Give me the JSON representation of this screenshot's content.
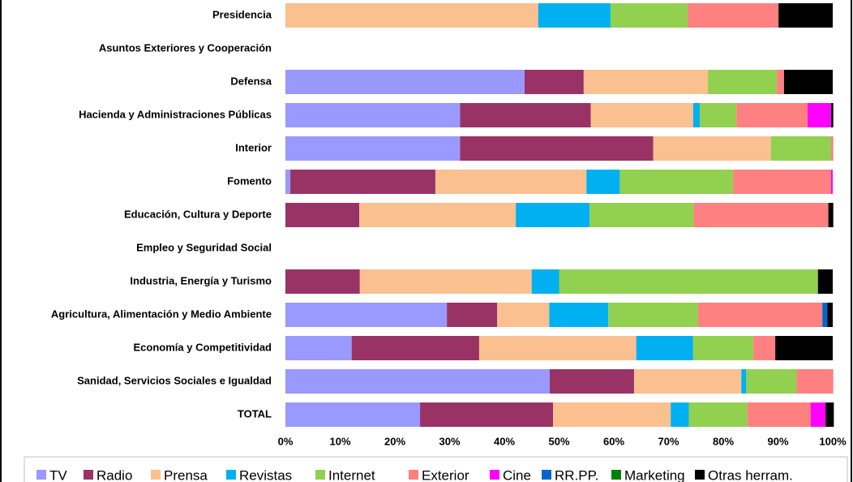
{
  "chart_data": {
    "type": "stacked_bar_horizontal",
    "categories": [
      "Presidencia",
      "Asuntos Exteriores y Cooperación",
      "Defensa",
      "Hacienda y Administraciones Públicas",
      "Interior",
      "Fomento",
      "Educación, Cultura y Deporte",
      "Empleo y Seguridad Social",
      "Industria, Energía y Turismo",
      "Agricultura, Alimentación y Medio Ambiente",
      "Economía y Competitividad",
      "Sanidad, Servicios Sociales e Igualdad",
      "TOTAL"
    ],
    "series": [
      {
        "name": "TV",
        "color": "#9999ff",
        "values": [
          0,
          0,
          43.7,
          31.9,
          31.9,
          0.9,
          0,
          0,
          0,
          29.5,
          12.1,
          48.3,
          24.6
        ]
      },
      {
        "name": "Radio",
        "color": "#993366",
        "values": [
          0,
          0,
          10.8,
          23.9,
          35.3,
          26.5,
          13.5,
          0,
          13.6,
          9.2,
          23.3,
          15.4,
          24.3
        ]
      },
      {
        "name": "Prensa",
        "color": "#fac090",
        "values": [
          46.2,
          0,
          22.7,
          18.7,
          21.5,
          27.6,
          28.6,
          0,
          31.4,
          9.5,
          28.7,
          19.6,
          21.5
        ]
      },
      {
        "name": "Revistas",
        "color": "#00b0f0",
        "values": [
          13.2,
          0,
          0,
          1.2,
          0,
          6.1,
          13.5,
          0,
          5.0,
          10.8,
          10.4,
          0.9,
          3.3
        ]
      },
      {
        "name": "Internet",
        "color": "#92d050",
        "values": [
          14.1,
          0,
          12.6,
          6.7,
          11.0,
          20.7,
          19.0,
          0,
          47.3,
          16.4,
          11.0,
          9.2,
          10.7
        ]
      },
      {
        "name": "Exterior",
        "color": "#ff8080",
        "values": [
          16.6,
          0,
          1.3,
          13.0,
          0.4,
          17.9,
          24.6,
          0,
          0,
          22.7,
          4.0,
          6.7,
          11.6
        ]
      },
      {
        "name": "Cine",
        "color": "#ff00ff",
        "values": [
          0,
          0,
          0,
          4.3,
          0,
          0.3,
          0,
          0,
          0,
          0,
          0,
          0,
          2.7
        ]
      },
      {
        "name": "RR.PP.",
        "color": "#0066cc",
        "values": [
          0,
          0,
          0,
          0,
          0,
          0,
          0,
          0,
          0,
          0.9,
          0,
          0,
          0
        ]
      },
      {
        "name": "Marketing",
        "color": "#008000",
        "values": [
          0,
          0,
          0,
          0,
          0,
          0,
          0,
          0,
          0,
          0,
          0,
          0,
          0
        ]
      },
      {
        "name": "Otras herram.",
        "color": "#000000",
        "values": [
          9.9,
          0,
          8.9,
          0.4,
          0,
          0,
          0.9,
          0,
          2.7,
          1.0,
          10.5,
          0,
          1.5
        ]
      }
    ],
    "xlim": [
      0,
      100
    ],
    "xticks": [
      {
        "value": 0,
        "label": "0%"
      },
      {
        "value": 10,
        "label": "10%"
      },
      {
        "value": 20,
        "label": "20%"
      },
      {
        "value": 30,
        "label": "30%"
      },
      {
        "value": 40,
        "label": "40%"
      },
      {
        "value": 50,
        "label": "50%"
      },
      {
        "value": 60,
        "label": "60%"
      },
      {
        "value": 70,
        "label": "70%"
      },
      {
        "value": 80,
        "label": "80%"
      },
      {
        "value": 90,
        "label": "90%"
      },
      {
        "value": 100,
        "label": "100%"
      }
    ],
    "legend": "bottom"
  }
}
